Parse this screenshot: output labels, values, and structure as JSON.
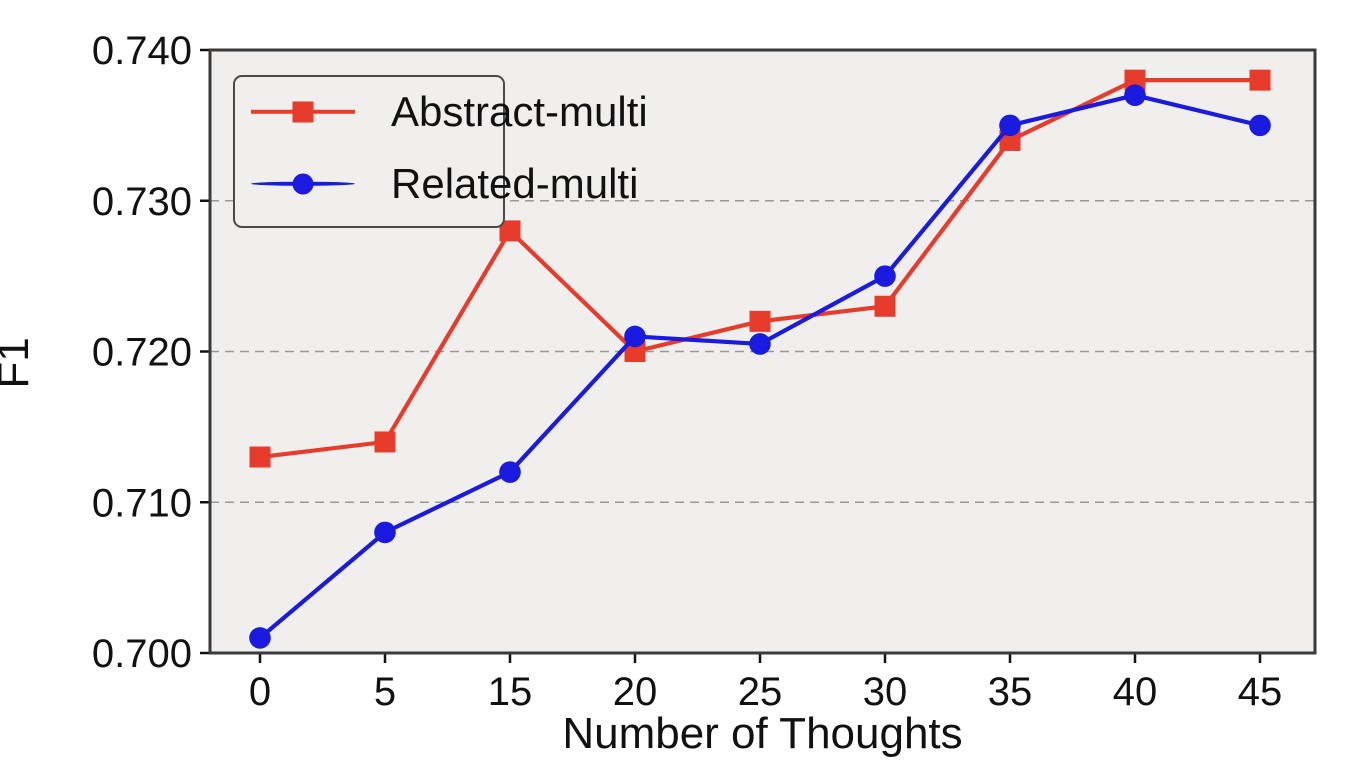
{
  "chart_data": {
    "type": "line",
    "xlabel": "Number of Thoughts",
    "ylabel": "F1",
    "x_tick_labels": [
      "0",
      "5",
      "15",
      "20",
      "25",
      "30",
      "35",
      "40",
      "45"
    ],
    "yticks": [
      0.7,
      0.71,
      0.72,
      0.73,
      0.74
    ],
    "ytick_labels": [
      "0.700",
      "0.710",
      "0.720",
      "0.730",
      "0.740"
    ],
    "ylim": [
      0.7,
      0.74
    ],
    "grid": "horizontal dashed gridlines at inner y-ticks",
    "legend_position": "upper-left",
    "series": [
      {
        "name": "Abstract-multi",
        "color": "#e73b2c",
        "marker": "square",
        "values": [
          0.713,
          0.714,
          0.728,
          0.72,
          0.722,
          0.723,
          0.734,
          0.738,
          0.738
        ]
      },
      {
        "name": "Related-multi",
        "color": "#1a1ae0",
        "marker": "circle",
        "values": [
          0.701,
          0.708,
          0.712,
          0.721,
          0.7205,
          0.725,
          0.735,
          0.737,
          0.735
        ]
      }
    ],
    "colors": {
      "plot_background": "#f0efee",
      "figure_background": "#ffffff",
      "spine": "#3a3a3a",
      "gridline": "#999999",
      "tick_text": "#111111"
    }
  }
}
